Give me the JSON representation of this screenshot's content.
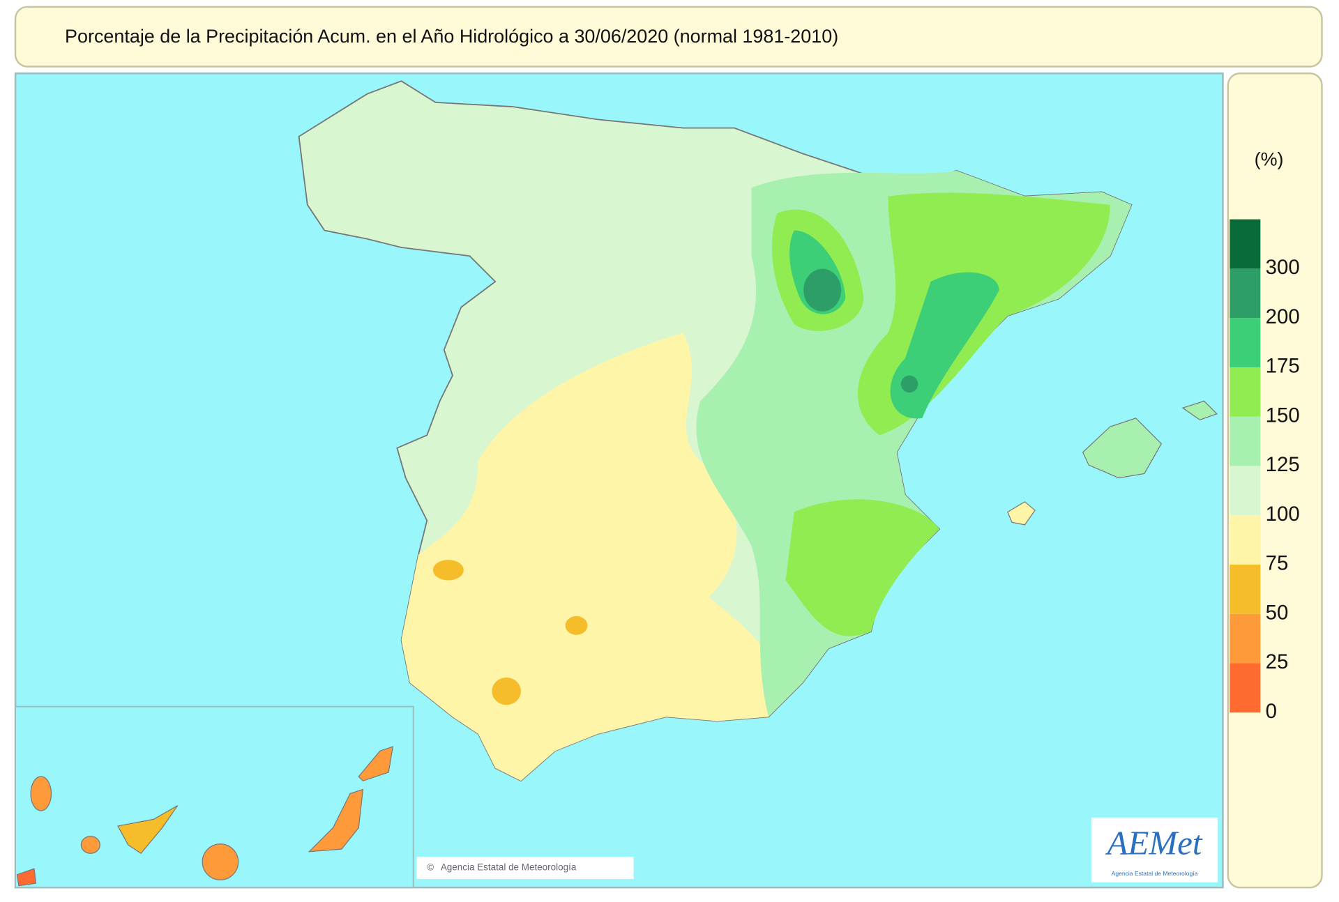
{
  "header": {
    "title": "Porcentaje de la Precipitación Acum. en el Año Hidrológico a 30/06/2020  (normal 1981-2010)"
  },
  "legend": {
    "unit": "(%)",
    "ticks": [
      0,
      25,
      50,
      75,
      100,
      125,
      150,
      175,
      200,
      300
    ],
    "colors": [
      "#ff6a30",
      "#ff9a3a",
      "#f5bd2a",
      "#fff5a8",
      "#d8f7d0",
      "#a8f0b0",
      "#90ec50",
      "#3ccf78",
      "#2e9e68",
      "#0a6b3a"
    ]
  },
  "footer": {
    "copyright": "Agencia Estatal de Meteorología",
    "logo": "AEMet",
    "logo_subtitle": "Agencia Estatal de Meteorología"
  }
}
